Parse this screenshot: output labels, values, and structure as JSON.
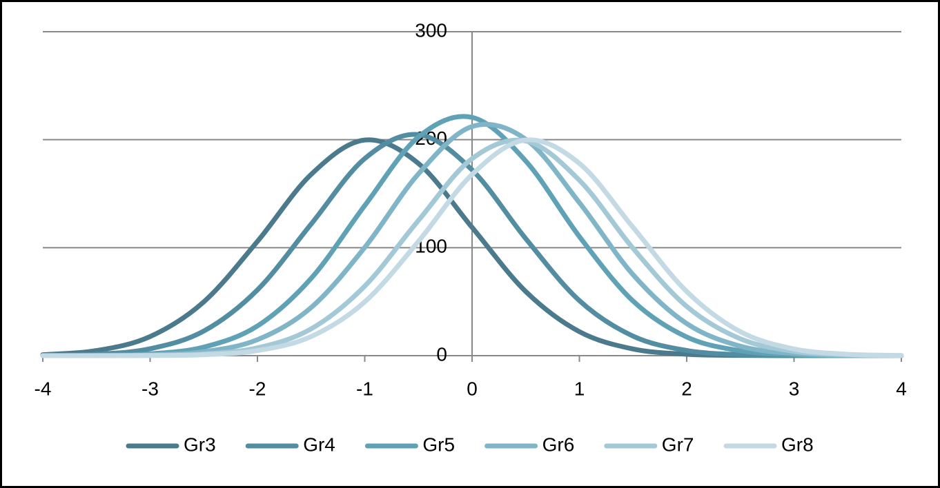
{
  "chart_data": {
    "type": "line",
    "x": [
      -4,
      -3.5,
      -3,
      -2.5,
      -2,
      -1.5,
      -1,
      -0.5,
      0,
      0.5,
      1,
      1.5,
      2,
      2.5,
      3,
      3.5,
      4
    ],
    "series": [
      {
        "name": "Gr3",
        "color": "#4a7a8c",
        "values": [
          0.9,
          4.7,
          17.7,
          49.8,
          105.8,
          167.8,
          199.7,
          178,
          118.8,
          59.4,
          22.2,
          6.2,
          1.3,
          0.2,
          0,
          0,
          0
        ]
      },
      {
        "name": "Gr4",
        "color": "#538da1",
        "values": [
          0.2,
          1.3,
          6.4,
          22.8,
          60.9,
          121.8,
          182.5,
          204.7,
          172,
          108.4,
          51,
          18.1,
          4.8,
          0.9,
          0.1,
          0,
          0
        ]
      },
      {
        "name": "Gr5",
        "color": "#5fa1b5",
        "values": [
          0,
          0.3,
          1.7,
          7.9,
          27.5,
          71.5,
          139,
          202.5,
          220.7,
          180.3,
          110.3,
          50.6,
          17.3,
          4.5,
          0.9,
          0.1,
          0
        ]
      },
      {
        "name": "Gr6",
        "color": "#7fb5c7",
        "values": [
          0,
          0.1,
          0.7,
          3.7,
          14.8,
          44.5,
          100.2,
          168.3,
          212.2,
          200.4,
          141.7,
          75,
          29.7,
          8.8,
          2,
          0.3,
          0
        ]
      },
      {
        "name": "Gr7",
        "color": "#a3c8d6",
        "values": [
          0,
          0,
          0.3,
          1.6,
          7.2,
          24.8,
          64.4,
          125.2,
          182.4,
          198.8,
          162.4,
          99.4,
          45.6,
          15.6,
          4,
          0.8,
          0.1
        ]
      },
      {
        "name": "Gr8",
        "color": "#c3d9e3",
        "values": [
          0,
          0,
          0.1,
          0.9,
          4.7,
          17.7,
          49.8,
          105.8,
          167.8,
          199.7,
          178,
          118.8,
          59.4,
          22.2,
          6.2,
          1.3,
          0.2
        ]
      }
    ],
    "xlim": [
      -4,
      4
    ],
    "xticks": [
      -4,
      -3,
      -2,
      -1,
      0,
      1,
      2,
      3,
      4
    ],
    "ylim": [
      0,
      300
    ],
    "yticks": [
      0,
      100,
      200,
      300
    ],
    "grid": true,
    "legend": "bottom"
  }
}
